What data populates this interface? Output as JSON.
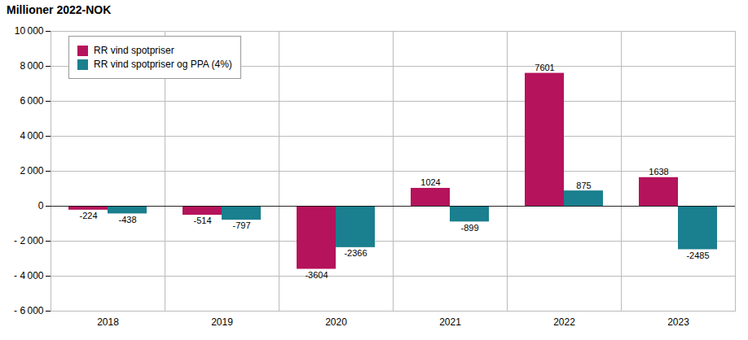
{
  "chart_data": {
    "type": "bar",
    "title": "Millioner 2022-NOK",
    "categories": [
      "2018",
      "2019",
      "2020",
      "2021",
      "2022",
      "2023"
    ],
    "series": [
      {
        "name": "RR vind spotpriser",
        "color": "#B5135B",
        "values": [
          -224,
          -514,
          -3604,
          1024,
          7601,
          1638
        ]
      },
      {
        "name": "RR vind spotpriser og PPA (4%)",
        "color": "#1A7F8E",
        "values": [
          -438,
          -797,
          -2366,
          -899,
          875,
          -2485
        ]
      }
    ],
    "ylim": [
      -6000,
      10000
    ],
    "yticks": [
      {
        "value": -6000,
        "label": "- 6 000"
      },
      {
        "value": -4000,
        "label": "- 4 000"
      },
      {
        "value": -2000,
        "label": "- 2 000"
      },
      0,
      {
        "value": 2000,
        "label": "2 000"
      },
      {
        "value": 4000,
        "label": "4 000"
      },
      {
        "value": 6000,
        "label": "6 000"
      },
      {
        "value": 8000,
        "label": "8 000"
      },
      {
        "value": 10000,
        "label": "10 000"
      }
    ],
    "grid": true,
    "legend": "upper left",
    "data_labels": true
  }
}
